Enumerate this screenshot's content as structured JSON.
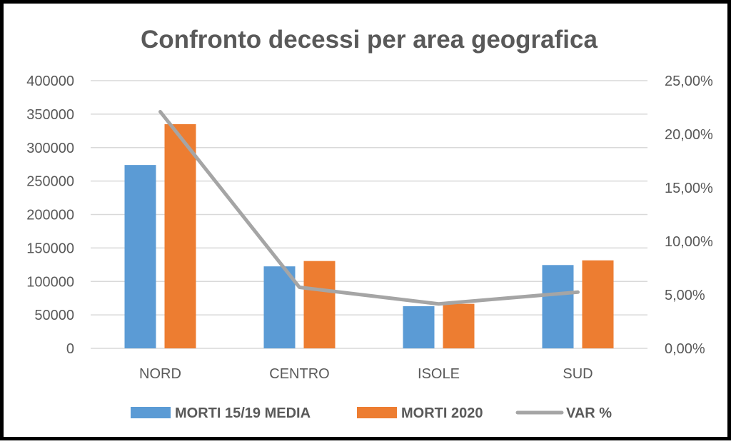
{
  "chart_data": {
    "type": "bar",
    "title": "Confronto decessi per area geografica",
    "categories": [
      "NORD",
      "CENTRO",
      "ISOLE",
      "SUD"
    ],
    "series": [
      {
        "name": "MORTI 15/19 MEDIA",
        "kind": "bar",
        "axis": "left",
        "color": "#5B9BD5",
        "values": [
          274000,
          122500,
          63000,
          124500
        ]
      },
      {
        "name": "MORTI 2020",
        "kind": "bar",
        "axis": "left",
        "color": "#ED7D31",
        "values": [
          335000,
          130500,
          66500,
          131500
        ]
      },
      {
        "name": "VAR %",
        "kind": "line",
        "axis": "right",
        "color": "#A5A5A5",
        "values": [
          22.1,
          5.7,
          4.15,
          5.25
        ]
      }
    ],
    "y_left": {
      "ylim": [
        0,
        400000
      ],
      "ticks": [
        0,
        50000,
        100000,
        150000,
        200000,
        250000,
        300000,
        350000,
        400000
      ],
      "tick_labels": [
        "0",
        "50000",
        "100000",
        "150000",
        "200000",
        "250000",
        "300000",
        "350000",
        "400000"
      ]
    },
    "y_right": {
      "ylim": [
        0,
        25
      ],
      "ticks": [
        0,
        5,
        10,
        15,
        20,
        25
      ],
      "tick_labels": [
        "0,00%",
        "5,00%",
        "10,00%",
        "15,00%",
        "20,00%",
        "25,00%"
      ]
    },
    "xlabel": "",
    "ylabel": "",
    "grid": true,
    "legend_position": "bottom"
  }
}
